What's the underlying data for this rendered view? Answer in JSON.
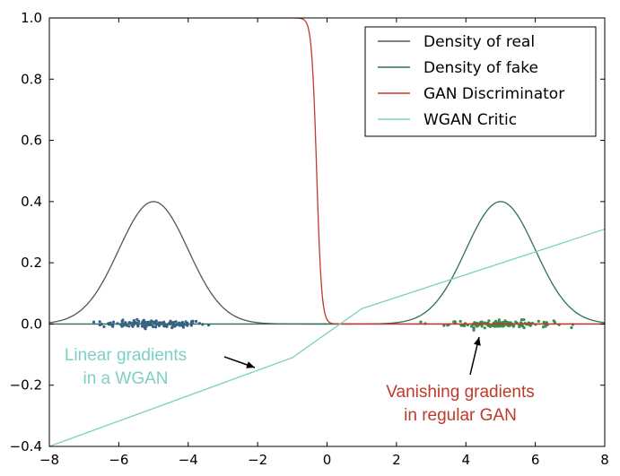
{
  "chart_data": {
    "type": "line",
    "title": "",
    "xlabel": "",
    "ylabel": "",
    "xlim": [
      -8,
      8
    ],
    "ylim": [
      -0.4,
      1.0
    ],
    "x_ticks": [
      -8,
      -6,
      -4,
      -2,
      0,
      2,
      4,
      6,
      8
    ],
    "y_ticks": [
      -0.4,
      -0.2,
      0.0,
      0.2,
      0.4,
      0.6,
      0.8,
      1.0
    ],
    "x_tick_labels": [
      "−8",
      "−6",
      "−4",
      "−2",
      "0",
      "2",
      "4",
      "6",
      "8"
    ],
    "y_tick_labels": [
      "−0.4",
      "−0.2",
      "0.0",
      "0.2",
      "0.4",
      "0.6",
      "0.8",
      "1.0"
    ],
    "grid": false,
    "legend_position": "top-right",
    "series": [
      {
        "name": "Density of real",
        "kind": "gaussian",
        "mean": -5,
        "std": 1,
        "peak": 0.4,
        "color": "#555555"
      },
      {
        "name": "Density of fake",
        "kind": "gaussian",
        "mean": 5,
        "std": 1,
        "peak": 0.4,
        "color": "#2e6e5e"
      },
      {
        "name": "GAN Discriminator",
        "kind": "sigmoid",
        "center": -0.3,
        "color": "#c0392b",
        "x": [
          -8,
          -1.0,
          -0.7,
          -0.5,
          -0.4,
          -0.3,
          -0.2,
          -0.1,
          0.0,
          0.2,
          0.5,
          8
        ],
        "y": [
          1.0,
          1.0,
          0.99,
          0.93,
          0.8,
          0.5,
          0.2,
          0.07,
          0.02,
          0.005,
          0.0,
          0.0
        ]
      },
      {
        "name": "WGAN Critic",
        "kind": "piecewise-linear",
        "color": "#7ecfc4",
        "x": [
          -8,
          -1,
          1,
          8
        ],
        "y": [
          -0.4,
          -0.11,
          0.05,
          0.31
        ]
      }
    ],
    "scatter": [
      {
        "name": "real samples",
        "center": -5,
        "spread": 1.0,
        "count": 140,
        "color": "#3a5f8a"
      },
      {
        "name": "fake samples",
        "center": 5,
        "spread": 1.0,
        "count": 140,
        "color": "#3f8a4a"
      }
    ],
    "annotations": [
      {
        "lines": [
          "Linear gradients",
          "in a WGAN"
        ],
        "color": "#7ecfc4"
      },
      {
        "lines": [
          "Vanishing gradients",
          "in regular GAN"
        ],
        "color": "#c0392b"
      }
    ]
  }
}
